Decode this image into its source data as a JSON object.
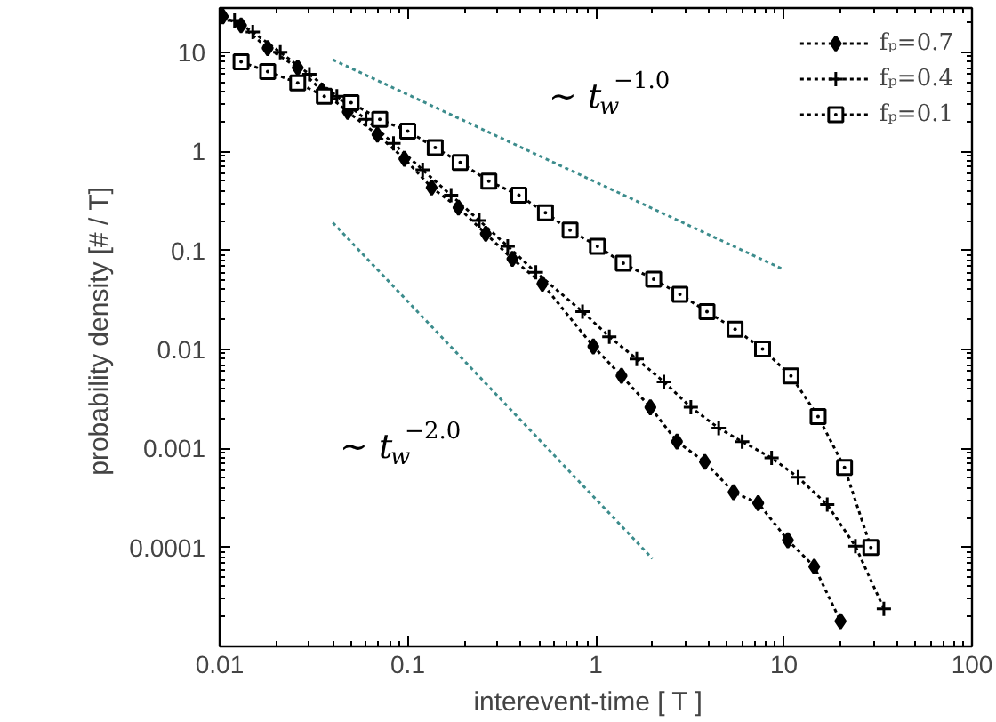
{
  "chart_data": {
    "type": "line",
    "xlabel": "interevent-time   [ T ]",
    "ylabel": "probability density  [# / T]",
    "log": "xy",
    "xlim": [
      0.01,
      100
    ],
    "ylim": [
      1e-05,
      28
    ],
    "xticks": [
      0.01,
      0.1,
      1,
      10,
      100
    ],
    "yticks": [
      0.0001,
      0.001,
      0.01,
      0.1,
      1,
      10
    ],
    "grid": false,
    "legend": "top right",
    "line_style": "dotted",
    "series": [
      {
        "name": "fₚ=0.7",
        "color": "#000000",
        "marker": "diamond",
        "x": [
          0.0104,
          0.013,
          0.018,
          0.026,
          0.035,
          0.048,
          0.069,
          0.096,
          0.134,
          0.186,
          0.26,
          0.36,
          0.52,
          0.97,
          1.37,
          1.95,
          2.7,
          3.8,
          5.4,
          7.3,
          10.5,
          14.5,
          20
        ],
        "values": [
          23,
          18.7,
          11,
          7.0,
          4.1,
          2.5,
          1.47,
          0.84,
          0.43,
          0.27,
          0.147,
          0.082,
          0.046,
          0.0107,
          0.0054,
          0.0026,
          0.00117,
          0.00073,
          0.00036,
          0.00028,
          0.000118,
          6.4e-05,
          1.8e-05
        ]
      },
      {
        "name": "fₚ=0.4",
        "color": "#000000",
        "marker": "cross",
        "x": [
          0.012,
          0.015,
          0.021,
          0.03,
          0.042,
          0.06,
          0.084,
          0.12,
          0.17,
          0.24,
          0.34,
          0.48,
          0.85,
          1.18,
          1.65,
          2.3,
          3.2,
          4.5,
          6.0,
          8.6,
          11.9,
          17,
          24,
          34
        ],
        "values": [
          21,
          16,
          10,
          6,
          3.6,
          2.1,
          1.2,
          0.65,
          0.36,
          0.2,
          0.11,
          0.06,
          0.024,
          0.0134,
          0.008,
          0.0047,
          0.0026,
          0.0016,
          0.00117,
          0.0008,
          0.00051,
          0.00027,
          0.000103,
          2.4e-05
        ]
      },
      {
        "name": "fₚ=0.1",
        "color": "#000000",
        "marker": "square",
        "x": [
          0.013,
          0.018,
          0.026,
          0.036,
          0.05,
          0.071,
          0.1,
          0.14,
          0.19,
          0.27,
          0.39,
          0.54,
          0.73,
          1.02,
          1.4,
          2.03,
          2.8,
          3.9,
          5.5,
          7.7,
          10.9,
          15.2,
          21,
          29
        ],
        "values": [
          8.0,
          6.4,
          4.9,
          3.6,
          3.1,
          2.1,
          1.6,
          1.09,
          0.77,
          0.5,
          0.36,
          0.24,
          0.16,
          0.11,
          0.074,
          0.051,
          0.036,
          0.024,
          0.016,
          0.0101,
          0.0054,
          0.0021,
          0.00064,
          0.0001
        ]
      },
      {
        "color": "#3c8c8c",
        "marker": "none",
        "x": [
          0.04,
          9.8
        ],
        "values": [
          8.4,
          0.065
        ]
      },
      {
        "color": "#3c8c8c",
        "marker": "none",
        "x": [
          0.04,
          2.0
        ],
        "values": [
          0.19,
          7.7e-05
        ]
      }
    ],
    "annotations": [
      "∼ t$_{w}$$^{−1.0}$",
      "∼ t$_{w}$$^{−2.0}$"
    ]
  }
}
